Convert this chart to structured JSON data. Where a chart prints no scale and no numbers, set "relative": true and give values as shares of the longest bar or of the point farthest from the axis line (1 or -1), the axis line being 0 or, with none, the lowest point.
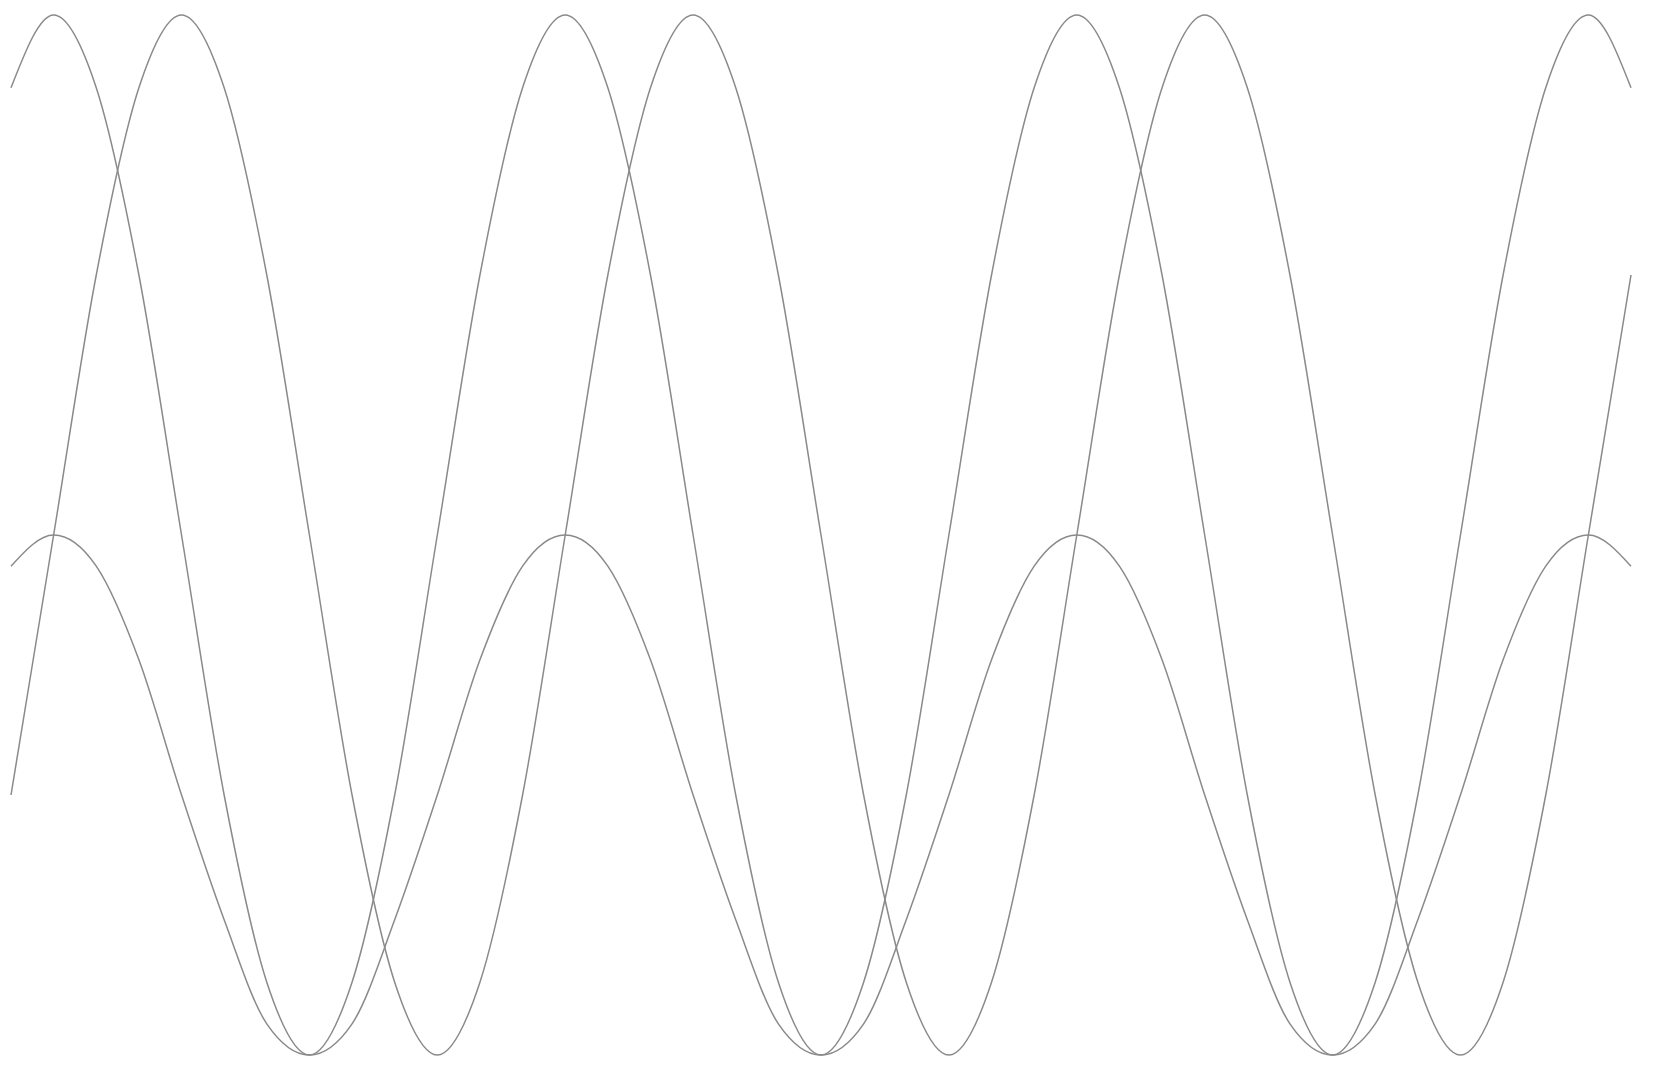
{
  "chart_data": {
    "type": "line",
    "relative": true,
    "categories": [
      null,
      null,
      null,
      null,
      null,
      null,
      null,
      null,
      null,
      null,
      null,
      null,
      null,
      null,
      null,
      null,
      null,
      null,
      null,
      null,
      null,
      null,
      null,
      null,
      null,
      null,
      null,
      null,
      null,
      null,
      null,
      null,
      null,
      null,
      null,
      null,
      null,
      null,
      null
    ],
    "series": [
      {
        "color": "#8a8a8a",
        "values": [
          0.93,
          1,
          0.93,
          0.75,
          0.5,
          0.25,
          0.07,
          0,
          0.07,
          0.25,
          0.5,
          0.75,
          0.93,
          1,
          0.93,
          0.75,
          0.5,
          0.25,
          0.07,
          0,
          0.07,
          0.25,
          0.5,
          0.75,
          0.93,
          1,
          0.93,
          0.75,
          0.5,
          0.25,
          0.07,
          0,
          0.07,
          0.25,
          0.5,
          0.75,
          0.93,
          1,
          0.93
        ]
      },
      {
        "color": "#8a8a8a",
        "values": [
          0.25,
          0.5,
          0.75,
          0.93,
          1,
          0.93,
          0.75,
          0.5,
          0.25,
          0.07,
          0,
          0.07,
          0.25,
          0.5,
          0.75,
          0.93,
          1,
          0.93,
          0.75,
          0.5,
          0.25,
          0.07,
          0,
          0.07,
          0.25,
          0.5,
          0.75,
          0.93,
          1,
          0.93,
          0.75,
          0.5,
          0.25,
          0.07,
          0,
          0.07,
          0.25,
          0.5,
          0.75
        ]
      },
      {
        "color": "#8a8a8a",
        "values": [
          0.47,
          0.5,
          0.47,
          0.38,
          0.25,
          0.13,
          0.03,
          0,
          0.03,
          0.13,
          0.25,
          0.38,
          0.47,
          0.5,
          0.47,
          0.38,
          0.25,
          0.13,
          0.03,
          0,
          0.03,
          0.13,
          0.25,
          0.38,
          0.47,
          0.5,
          0.47,
          0.38,
          0.25,
          0.13,
          0.03,
          0,
          0.03,
          0.13,
          0.25,
          0.38,
          0.47,
          0.5,
          0.47
        ]
      }
    ]
  }
}
